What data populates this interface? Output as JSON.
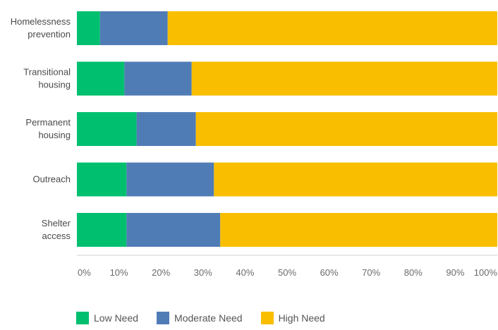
{
  "chart_data": {
    "type": "bar",
    "orientation": "horizontal",
    "stacked": true,
    "categories": [
      [
        "Homelessness",
        "prevention"
      ],
      [
        "Transitional",
        "housing"
      ],
      [
        "Permanent",
        "housing"
      ],
      [
        "Outreach"
      ],
      [
        "Shelter",
        "access"
      ]
    ],
    "series": [
      {
        "name": "Low Need",
        "color": "#00bf6f",
        "values": [
          5.5,
          11.3,
          14.2,
          11.8,
          11.8
        ]
      },
      {
        "name": "Moderate Need",
        "color": "#507cb6",
        "values": [
          16.1,
          16.0,
          14.1,
          20.8,
          22.3
        ]
      },
      {
        "name": "High Need",
        "color": "#f9be00",
        "values": [
          78.4,
          72.7,
          71.7,
          67.4,
          65.9
        ]
      }
    ],
    "xlim": [
      0,
      100
    ],
    "xticks": [
      "0%",
      "10%",
      "20%",
      "30%",
      "40%",
      "50%",
      "60%",
      "70%",
      "80%",
      "90%",
      "100%"
    ],
    "legend_position": "bottom-left",
    "grid": false
  }
}
